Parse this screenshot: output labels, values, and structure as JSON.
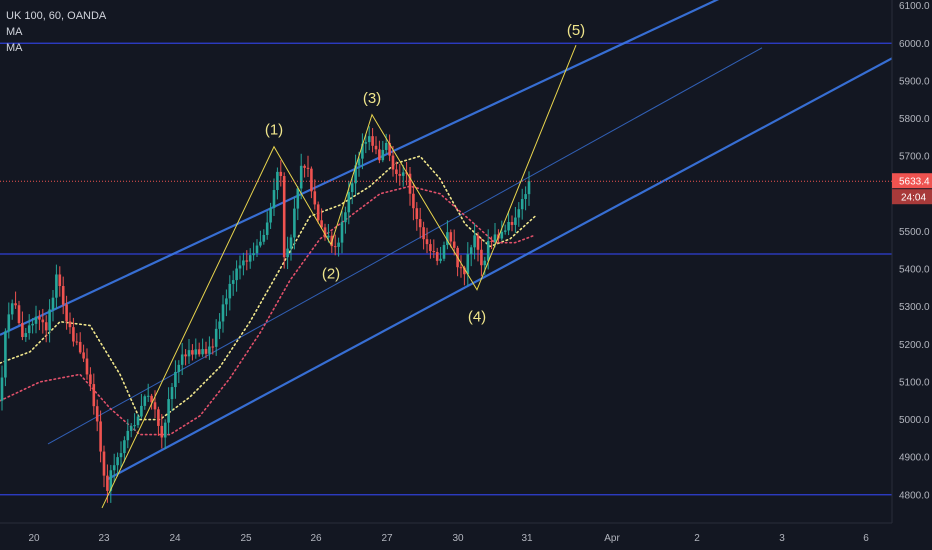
{
  "legend": {
    "symbol": "UK 100, 60, OANDA",
    "indicators": [
      "MA",
      "MA"
    ]
  },
  "colors": {
    "background": "#131722",
    "candle_up": "#26a69a",
    "candle_down": "#ef5350",
    "channel": "#3b78e7",
    "horizontal": "#2f3fd6",
    "wave": "#e8d44d",
    "ma_fast": "#f0e68c",
    "ma_slow": "#e0506a",
    "price_line": "#ef5350"
  },
  "chart_data": {
    "type": "candlestick",
    "instrument": "UK 100",
    "timeframe": "60",
    "source": "OANDA",
    "y_ticks": [
      4800,
      4900,
      5000,
      5100,
      5200,
      5300,
      5400,
      5500,
      5600,
      5700,
      5800,
      5900,
      6000,
      6100
    ],
    "ylim": [
      4725,
      6115
    ],
    "x_ticks": [
      "20",
      "23",
      "24",
      "25",
      "26",
      "27",
      "30",
      "31",
      "Apr",
      "2",
      "3",
      "6"
    ],
    "last_price": "5633.4",
    "countdown": "24:04",
    "horizontal_levels": [
      6000,
      5440,
      4800
    ],
    "price_path": [
      [
        0,
        5050
      ],
      [
        6,
        5250
      ],
      [
        14,
        5310
      ],
      [
        22,
        5210
      ],
      [
        30,
        5260
      ],
      [
        38,
        5290
      ],
      [
        46,
        5240
      ],
      [
        54,
        5330
      ],
      [
        58,
        5390
      ],
      [
        62,
        5300
      ],
      [
        66,
        5270
      ],
      [
        72,
        5230
      ],
      [
        80,
        5200
      ],
      [
        88,
        5120
      ],
      [
        96,
        5000
      ],
      [
        102,
        4880
      ],
      [
        106,
        4790
      ],
      [
        112,
        4880
      ],
      [
        120,
        4920
      ],
      [
        128,
        4980
      ],
      [
        136,
        4980
      ],
      [
        146,
        5060
      ],
      [
        154,
        5040
      ],
      [
        162,
        4960
      ],
      [
        170,
        5080
      ],
      [
        180,
        5150
      ],
      [
        190,
        5170
      ],
      [
        200,
        5190
      ],
      [
        212,
        5200
      ],
      [
        222,
        5280
      ],
      [
        232,
        5360
      ],
      [
        240,
        5420
      ],
      [
        248,
        5440
      ],
      [
        256,
        5460
      ],
      [
        264,
        5480
      ],
      [
        270,
        5540
      ],
      [
        276,
        5630
      ],
      [
        280,
        5700
      ],
      [
        284,
        5440
      ],
      [
        290,
        5480
      ],
      [
        296,
        5600
      ],
      [
        302,
        5680
      ],
      [
        308,
        5650
      ],
      [
        314,
        5560
      ],
      [
        322,
        5500
      ],
      [
        330,
        5490
      ],
      [
        336,
        5460
      ],
      [
        342,
        5520
      ],
      [
        350,
        5600
      ],
      [
        356,
        5660
      ],
      [
        362,
        5720
      ],
      [
        368,
        5760
      ],
      [
        374,
        5740
      ],
      [
        380,
        5700
      ],
      [
        386,
        5740
      ],
      [
        392,
        5660
      ],
      [
        398,
        5630
      ],
      [
        406,
        5660
      ],
      [
        412,
        5580
      ],
      [
        418,
        5540
      ],
      [
        426,
        5470
      ],
      [
        434,
        5430
      ],
      [
        440,
        5400
      ],
      [
        446,
        5490
      ],
      [
        452,
        5480
      ],
      [
        458,
        5420
      ],
      [
        464,
        5400
      ],
      [
        470,
        5460
      ],
      [
        476,
        5480
      ],
      [
        482,
        5380
      ],
      [
        488,
        5460
      ],
      [
        494,
        5490
      ],
      [
        500,
        5500
      ],
      [
        508,
        5530
      ],
      [
        514,
        5520
      ],
      [
        520,
        5560
      ],
      [
        526,
        5590
      ],
      [
        532,
        5633
      ]
    ],
    "ma_fast_path": [
      [
        0,
        5150
      ],
      [
        30,
        5180
      ],
      [
        60,
        5260
      ],
      [
        90,
        5250
      ],
      [
        120,
        5120
      ],
      [
        140,
        5000
      ],
      [
        160,
        5000
      ],
      [
        190,
        5060
      ],
      [
        220,
        5140
      ],
      [
        250,
        5260
      ],
      [
        280,
        5400
      ],
      [
        310,
        5540
      ],
      [
        340,
        5570
      ],
      [
        370,
        5620
      ],
      [
        395,
        5680
      ],
      [
        420,
        5700
      ],
      [
        440,
        5640
      ],
      [
        465,
        5520
      ],
      [
        490,
        5460
      ],
      [
        510,
        5480
      ],
      [
        535,
        5540
      ]
    ],
    "ma_slow_path": [
      [
        0,
        5050
      ],
      [
        40,
        5100
      ],
      [
        80,
        5120
      ],
      [
        110,
        5030
      ],
      [
        140,
        4960
      ],
      [
        170,
        4960
      ],
      [
        200,
        5010
      ],
      [
        230,
        5110
      ],
      [
        260,
        5230
      ],
      [
        290,
        5370
      ],
      [
        320,
        5480
      ],
      [
        350,
        5540
      ],
      [
        380,
        5600
      ],
      [
        410,
        5620
      ],
      [
        440,
        5600
      ],
      [
        470,
        5530
      ],
      [
        495,
        5470
      ],
      [
        515,
        5470
      ],
      [
        535,
        5490
      ]
    ],
    "channel_upper": [
      [
        0,
        5225
      ],
      [
        892,
        6333
      ]
    ],
    "channel_lower": [
      [
        108,
        4842
      ],
      [
        892,
        5960
      ]
    ],
    "channel_mid": [
      [
        48,
        4935
      ],
      [
        762,
        5988
      ]
    ],
    "wave_points": [
      [
        102,
        4765
      ],
      [
        274,
        5725
      ],
      [
        331,
        5465
      ],
      [
        372,
        5810
      ],
      [
        477,
        5345
      ],
      [
        576,
        5995
      ]
    ],
    "wave_labels": [
      "(1)",
      "(2)",
      "(3)",
      "(4)",
      "(5)"
    ]
  }
}
